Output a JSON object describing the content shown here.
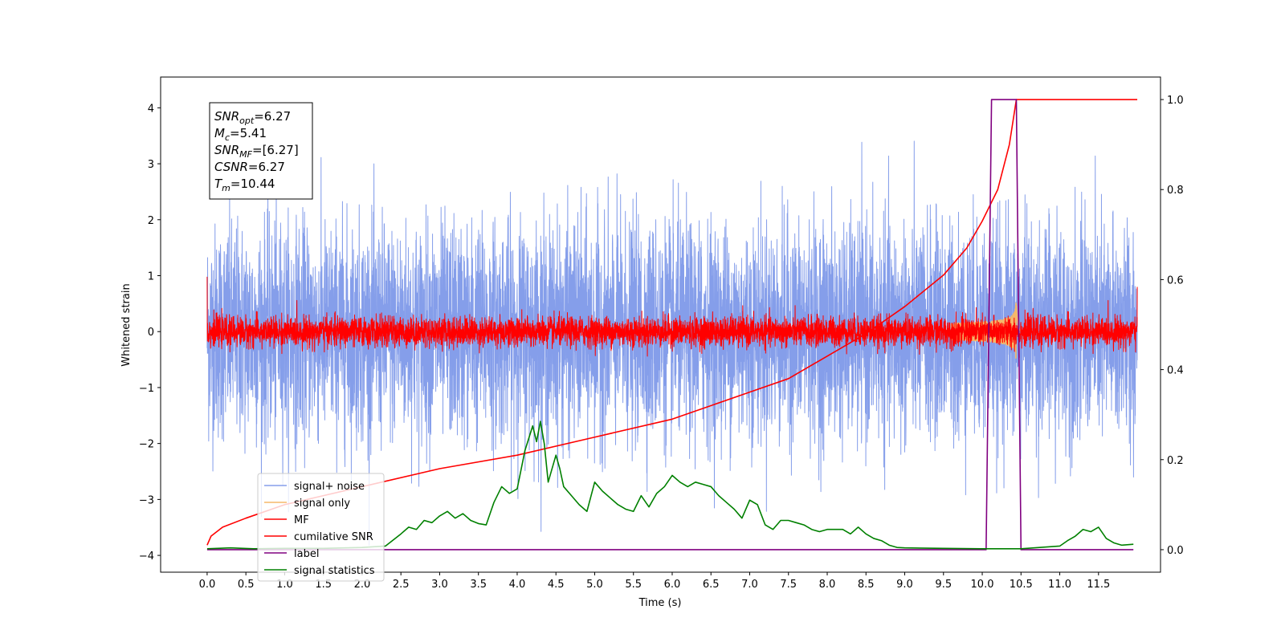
{
  "chart_data": {
    "type": "line",
    "xlabel": "Time (s)",
    "ylabel": "Whitened strain",
    "xlim": [
      -0.6,
      12.3
    ],
    "ylim_left": [
      -4.3,
      4.55
    ],
    "ylim_right": [
      -0.05,
      1.05
    ],
    "x_ticks": [
      0.0,
      0.5,
      1.0,
      1.5,
      2.0,
      2.5,
      3.0,
      3.5,
      4.0,
      4.5,
      5.0,
      5.5,
      6.0,
      6.5,
      7.0,
      7.5,
      8.0,
      8.5,
      9.0,
      9.5,
      10.0,
      10.5,
      11.0,
      11.5
    ],
    "x_tick_labels": [
      "0.0",
      "0.5",
      "1.0",
      "1.5",
      "2.0",
      "2.5",
      "3.0",
      "3.5",
      "4.0",
      "4.5",
      "5.0",
      "5.5",
      "6.0",
      "6.5",
      "7.0",
      "7.5",
      "8.0",
      "8.5",
      "9.0",
      "9.5",
      "10.0",
      "10.5",
      "11.0",
      "11.5"
    ],
    "y_left_ticks": [
      -4,
      -3,
      -2,
      -1,
      0,
      1,
      2,
      3,
      4
    ],
    "y_left_tick_labels": [
      "−4",
      "−3",
      "−2",
      "−1",
      "0",
      "1",
      "2",
      "3",
      "4"
    ],
    "y_right_ticks": [
      0.0,
      0.2,
      0.4,
      0.6,
      0.8,
      1.0
    ],
    "y_right_tick_labels": [
      "0.0",
      "0.2",
      "0.4",
      "0.6",
      "0.8",
      "1.0"
    ],
    "grid": false,
    "legend_position": "lower-left",
    "series": [
      {
        "name": "signal+ noise",
        "axis": "left",
        "color": "#7893e8",
        "kind": "noise-band",
        "x_range": [
          0.0,
          12.0
        ],
        "spread_std": 0.95,
        "peak": 4.18,
        "trough": -3.9
      },
      {
        "name": "signal only",
        "axis": "left",
        "color": "#f5b86a",
        "kind": "chirp",
        "x_range": [
          9.6,
          10.5
        ],
        "peak_amplitude": 0.6,
        "merger_time": 10.44
      },
      {
        "name": "MF",
        "axis": "left",
        "color": "#ff0000",
        "kind": "noise-band",
        "x_range": [
          0.0,
          12.0
        ],
        "spread_std": 0.13,
        "start_value": 0.98,
        "end_value": 0.8
      },
      {
        "name": "cumilative SNR",
        "axis": "right",
        "color": "#ff0000",
        "x": [
          0.0,
          0.05,
          0.2,
          0.5,
          1.0,
          1.5,
          2.0,
          3.0,
          4.0,
          5.0,
          6.0,
          7.0,
          7.5,
          8.0,
          8.5,
          9.0,
          9.5,
          9.8,
          10.0,
          10.2,
          10.35,
          10.44,
          10.5,
          12.0
        ],
        "values": [
          0.01,
          0.03,
          0.05,
          0.07,
          0.1,
          0.12,
          0.14,
          0.18,
          0.21,
          0.25,
          0.29,
          0.35,
          0.38,
          0.43,
          0.48,
          0.54,
          0.61,
          0.67,
          0.73,
          0.8,
          0.9,
          1.0,
          1.0,
          1.0
        ]
      },
      {
        "name": "label",
        "axis": "right",
        "color": "#800080",
        "x": [
          0.0,
          10.05,
          10.12,
          10.44,
          10.5,
          11.95
        ],
        "values": [
          0.0,
          0.0,
          1.0,
          1.0,
          0.0,
          0.0
        ]
      },
      {
        "name": "signal statistics",
        "axis": "right",
        "color": "#008000",
        "x": [
          0.0,
          0.3,
          0.6,
          1.0,
          1.5,
          2.0,
          2.3,
          2.5,
          2.6,
          2.7,
          2.8,
          2.9,
          3.0,
          3.1,
          3.2,
          3.3,
          3.4,
          3.5,
          3.6,
          3.7,
          3.8,
          3.9,
          4.0,
          4.1,
          4.2,
          4.25,
          4.3,
          4.35,
          4.4,
          4.5,
          4.55,
          4.6,
          4.7,
          4.8,
          4.9,
          5.0,
          5.1,
          5.2,
          5.3,
          5.4,
          5.5,
          5.6,
          5.7,
          5.8,
          5.9,
          6.0,
          6.1,
          6.2,
          6.3,
          6.4,
          6.5,
          6.6,
          6.7,
          6.8,
          6.9,
          7.0,
          7.1,
          7.2,
          7.3,
          7.4,
          7.5,
          7.6,
          7.7,
          7.8,
          7.9,
          8.0,
          8.1,
          8.2,
          8.3,
          8.4,
          8.5,
          8.6,
          8.7,
          8.8,
          8.9,
          9.0,
          9.5,
          10.0,
          10.5,
          11.0,
          11.1,
          11.2,
          11.3,
          11.4,
          11.5,
          11.6,
          11.7,
          11.8,
          11.95
        ],
        "values": [
          0.002,
          0.004,
          0.002,
          0.003,
          0.003,
          0.005,
          0.008,
          0.035,
          0.05,
          0.045,
          0.065,
          0.06,
          0.075,
          0.085,
          0.07,
          0.08,
          0.065,
          0.058,
          0.055,
          0.105,
          0.14,
          0.125,
          0.135,
          0.22,
          0.275,
          0.24,
          0.285,
          0.235,
          0.15,
          0.21,
          0.18,
          0.14,
          0.12,
          0.1,
          0.085,
          0.15,
          0.13,
          0.115,
          0.1,
          0.09,
          0.085,
          0.12,
          0.095,
          0.125,
          0.14,
          0.165,
          0.15,
          0.14,
          0.15,
          0.145,
          0.14,
          0.12,
          0.105,
          0.09,
          0.07,
          0.11,
          0.1,
          0.055,
          0.045,
          0.065,
          0.065,
          0.06,
          0.055,
          0.045,
          0.04,
          0.045,
          0.045,
          0.045,
          0.035,
          0.05,
          0.035,
          0.025,
          0.02,
          0.01,
          0.005,
          0.004,
          0.003,
          0.002,
          0.002,
          0.008,
          0.02,
          0.03,
          0.045,
          0.04,
          0.05,
          0.025,
          0.015,
          0.01,
          0.012
        ]
      }
    ],
    "stats_box": [
      {
        "base": "SNR",
        "sub": "opt",
        "text": "=6.27"
      },
      {
        "base": "M",
        "sub": "c",
        "text": "=5.41"
      },
      {
        "base": "SNR",
        "sub": "MF",
        "text": "=[6.27]"
      },
      {
        "base": "CSNR",
        "sub": "",
        "text": "=6.27"
      },
      {
        "base": "T",
        "sub": "m",
        "text": "=10.44"
      }
    ]
  }
}
